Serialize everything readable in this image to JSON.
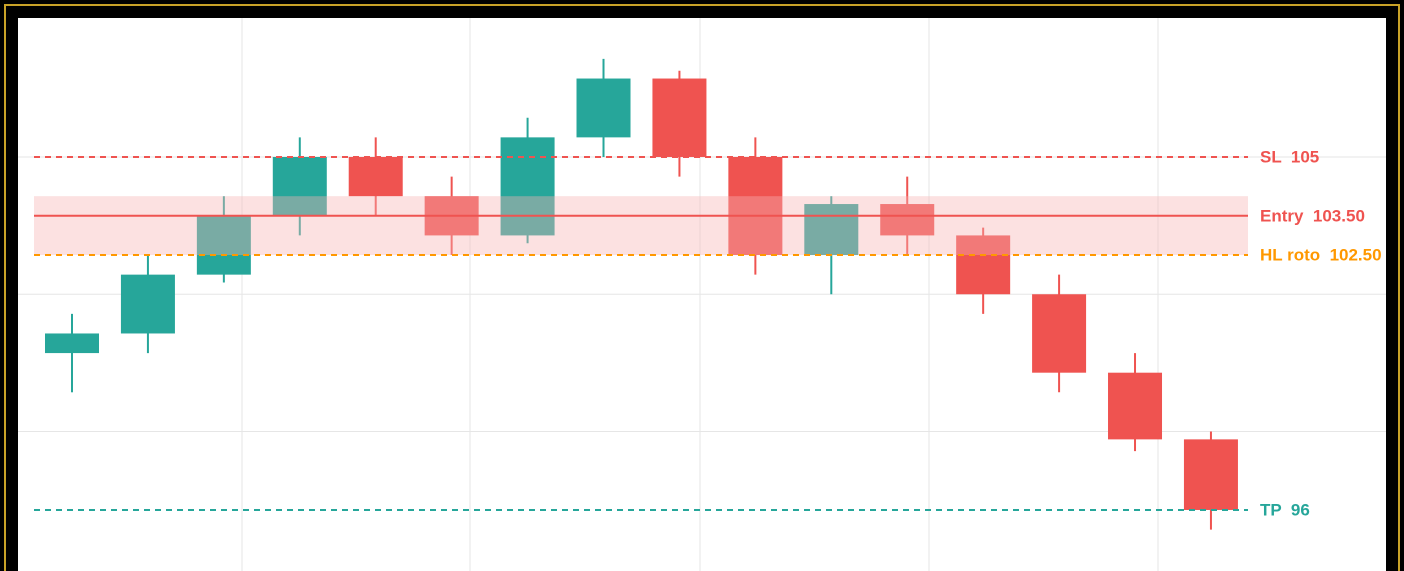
{
  "chart_data": {
    "type": "candlestick",
    "up_color": "#26a69a",
    "down_color": "#ef5350",
    "open": [
      100.0,
      100.5,
      102.0,
      103.5,
      105.0,
      104.0,
      103.0,
      105.5,
      107.0,
      105.0,
      102.5,
      103.8,
      103.0,
      101.5,
      99.5,
      97.8
    ],
    "high": [
      101.0,
      102.5,
      104.0,
      105.5,
      105.5,
      104.5,
      106.0,
      107.5,
      107.2,
      105.5,
      104.0,
      104.5,
      103.2,
      102.0,
      100.0,
      98.0
    ],
    "low": [
      99.0,
      100.0,
      101.8,
      103.0,
      103.5,
      102.5,
      102.8,
      105.0,
      104.5,
      102.0,
      101.5,
      102.5,
      101.0,
      99.0,
      97.5,
      95.5
    ],
    "close": [
      100.5,
      102.0,
      103.5,
      105.0,
      104.0,
      103.0,
      105.5,
      107.0,
      105.0,
      102.5,
      103.8,
      103.0,
      101.5,
      99.5,
      97.8,
      96.0
    ],
    "ylim": [
      94.5,
      108.5
    ],
    "yticks": [
      98,
      101.5,
      105
    ],
    "grid": true,
    "zone": {
      "low": 102.5,
      "high": 104,
      "color": "#f8b4b4"
    },
    "levels": [
      {
        "label": "SL  105",
        "value": 105,
        "color": "#ef5350",
        "style": "dashed"
      },
      {
        "label": "Entry  103.50",
        "value": 103.5,
        "color": "#ef5350",
        "style": "solid"
      },
      {
        "label": "HL roto  102.50",
        "value": 102.5,
        "color": "#ff9800",
        "style": "dashed"
      },
      {
        "label": "TP  96",
        "value": 96,
        "color": "#26a69a",
        "style": "dashed"
      }
    ]
  }
}
